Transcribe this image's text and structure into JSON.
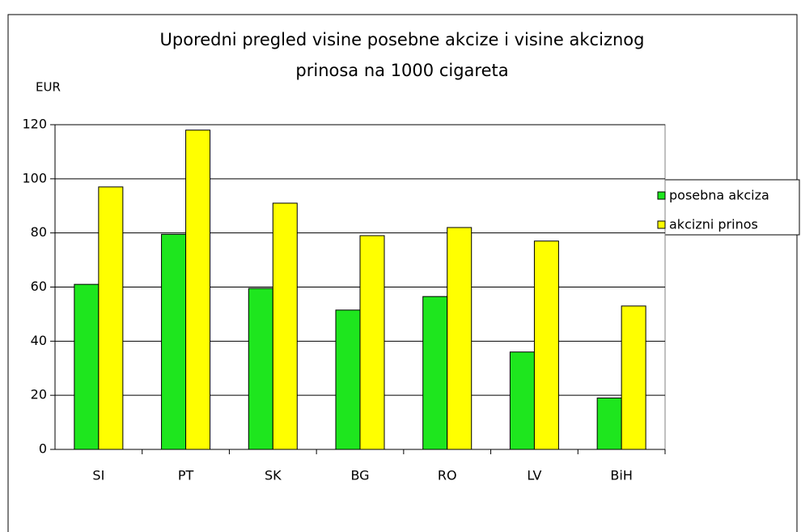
{
  "chart_data": {
    "type": "bar",
    "title": [
      "Uporedni pregled visine posebne akcize i visine akciznog",
      "prinosa na 1000 cigareta"
    ],
    "y_label": "EUR",
    "categories": [
      "SI",
      "PT",
      "SK",
      "BG",
      "RO",
      "LV",
      "BiH"
    ],
    "series": [
      {
        "name": "posebna akciza",
        "color": "#1ee61e",
        "values": [
          61,
          79.5,
          59.5,
          51.5,
          56.5,
          36,
          19
        ]
      },
      {
        "name": "akcizni prinos",
        "color": "#ffff00",
        "values": [
          97,
          118,
          91,
          79,
          82,
          77,
          53
        ]
      }
    ],
    "ylim": [
      0,
      120
    ],
    "yticks": [
      0,
      20,
      40,
      60,
      80,
      100,
      120
    ],
    "grid": true,
    "legend": "right"
  }
}
